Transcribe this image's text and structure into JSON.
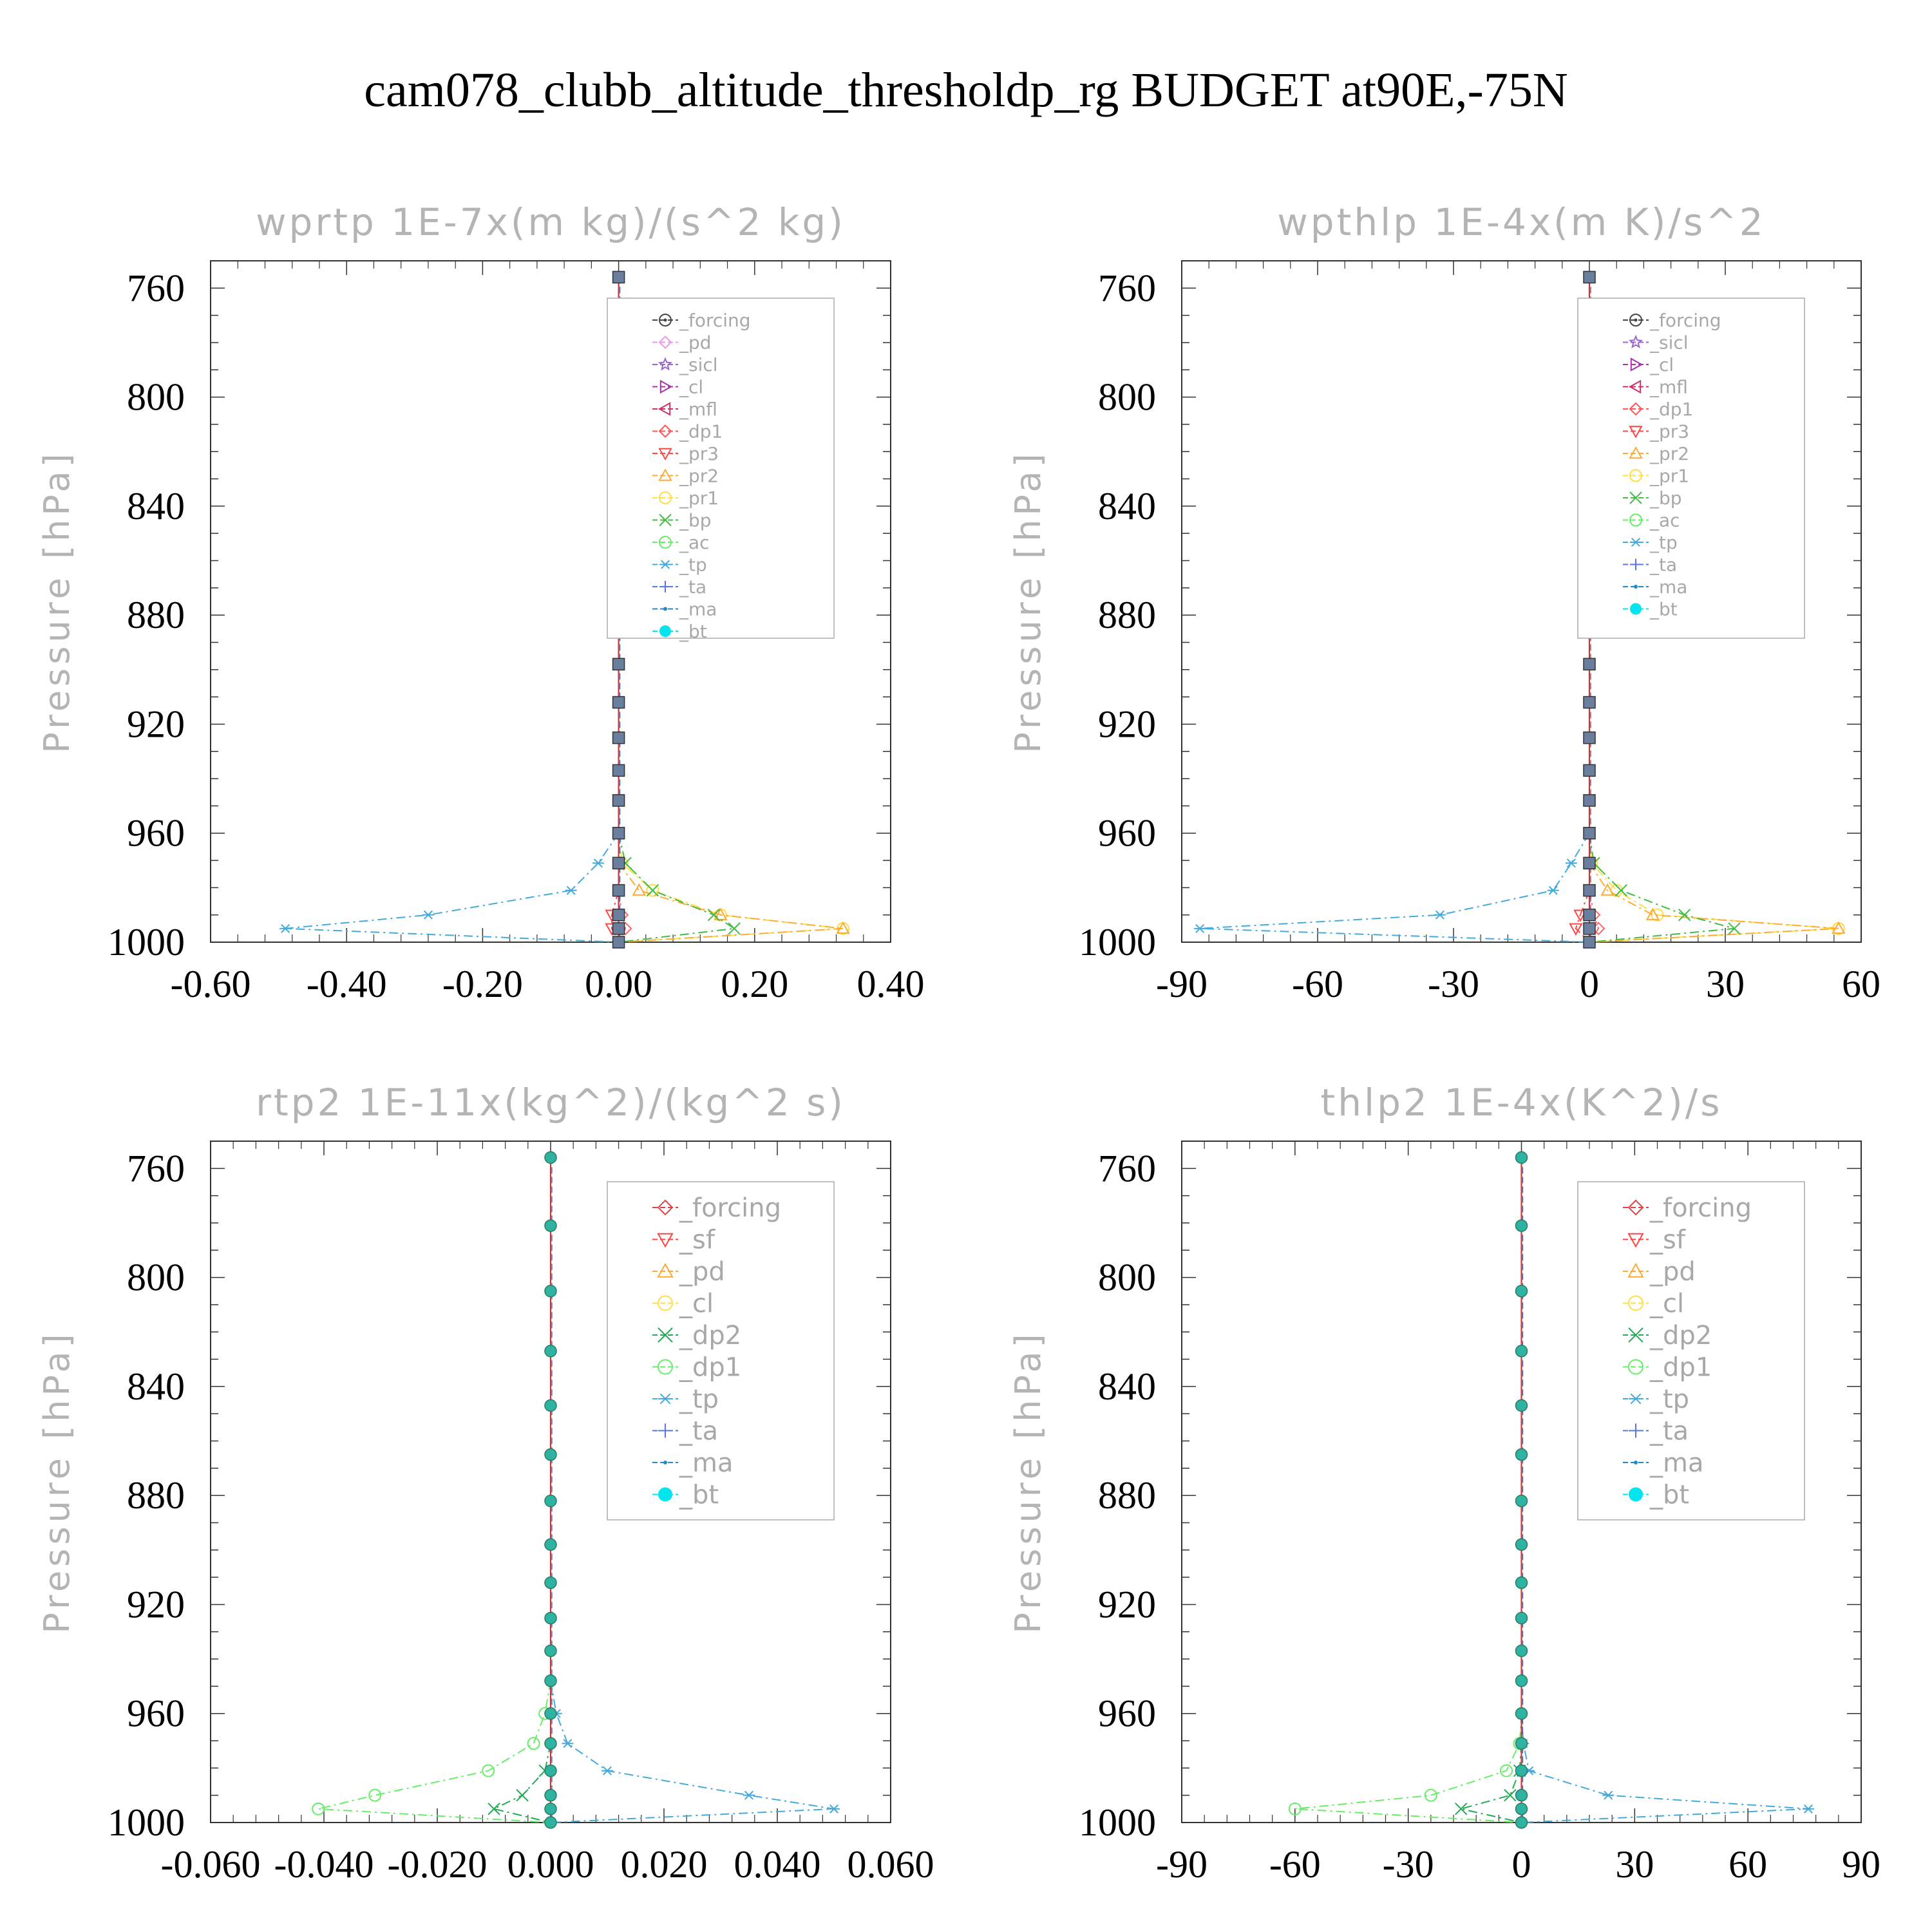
{
  "figure_title": "cam078_clubb_altitude_thresholdp_rg  BUDGET at90E,-75N",
  "chart_data": [
    {
      "type": "line",
      "title": "wprtp  1E-7x(m kg)/(s^2 kg)",
      "ylabel": "Pressure [hPa]",
      "xlabel": "",
      "xlim": [
        -0.6,
        0.4
      ],
      "ylim": [
        1000,
        750
      ],
      "xticks": [
        "-0.60",
        "-0.40",
        "-0.20",
        "0.00",
        "0.20",
        "0.40"
      ],
      "yticks": [
        "760",
        "800",
        "840",
        "880",
        "920",
        "960",
        "1000"
      ],
      "legend": [
        "_forcing",
        "_pd",
        "_sicl",
        "_cl",
        "_mfl",
        "_dp1",
        "_pr3",
        "_pr2",
        "_pr1",
        "_bp",
        "_ac",
        "_tp",
        "_ta",
        "_ma",
        "_bt"
      ],
      "pressure": [
        756,
        781,
        805,
        827,
        847,
        865,
        882,
        898,
        912,
        925,
        937,
        948,
        960,
        971,
        981,
        990,
        995,
        1000
      ],
      "series": [
        {
          "name": "_tp",
          "color": "#44aadd",
          "values": {
            "971": -0.03,
            "981": -0.07,
            "990": -0.28,
            "995": -0.49,
            "1000": 0.0
          }
        },
        {
          "name": "_pr1",
          "color": "#ffdd44",
          "values": {
            "971": 0.005,
            "981": 0.05,
            "990": 0.15,
            "995": 0.33,
            "1000": 0.0
          }
        },
        {
          "name": "_pr2",
          "color": "#ffaa33",
          "values": {
            "981": 0.03,
            "990": 0.15,
            "995": 0.33,
            "1000": 0.0
          }
        },
        {
          "name": "_bp",
          "color": "#44bb44",
          "values": {
            "971": 0.01,
            "981": 0.05,
            "990": 0.14,
            "995": 0.17,
            "1000": 0.0
          }
        },
        {
          "name": "_pr3",
          "color": "#ff4444",
          "values": {
            "990": -0.01,
            "995": -0.01,
            "1000": 0.0
          }
        },
        {
          "name": "_dp1",
          "color": "#ff6666",
          "values": {
            "990": 0.005,
            "995": 0.01,
            "1000": 0.0
          }
        }
      ]
    },
    {
      "type": "line",
      "title": "wpthlp  1E-4x(m K)/s^2",
      "ylabel": "Pressure [hPa]",
      "xlabel": "",
      "xlim": [
        -90,
        60
      ],
      "ylim": [
        1000,
        750
      ],
      "xticks": [
        "-90",
        "-60",
        "-30",
        "0",
        "30",
        "60"
      ],
      "yticks": [
        "760",
        "800",
        "840",
        "880",
        "920",
        "960",
        "1000"
      ],
      "legend": [
        "_forcing",
        "_sicl",
        "_cl",
        "_mfl",
        "_dp1",
        "_pr3",
        "_pr2",
        "_pr1",
        "_bp",
        "_ac",
        "_tp",
        "_ta",
        "_ma",
        "_bt"
      ],
      "pressure": [
        756,
        781,
        805,
        827,
        847,
        865,
        882,
        898,
        912,
        925,
        937,
        948,
        960,
        971,
        981,
        990,
        995,
        1000
      ],
      "series": [
        {
          "name": "_tp",
          "color": "#44aadd",
          "values": {
            "971": -4,
            "981": -8,
            "990": -33,
            "995": -86,
            "1000": 0
          }
        },
        {
          "name": "_pr1",
          "color": "#ffdd44",
          "values": {
            "971": 0.5,
            "981": 6,
            "990": 15,
            "995": 55,
            "1000": 0
          }
        },
        {
          "name": "_pr2",
          "color": "#ffaa33",
          "values": {
            "981": 4,
            "990": 14,
            "995": 55,
            "1000": 0
          }
        },
        {
          "name": "_bp",
          "color": "#44bb44",
          "values": {
            "971": 1,
            "981": 7,
            "990": 21,
            "995": 32,
            "1000": 0
          }
        },
        {
          "name": "_pr3",
          "color": "#ff4444",
          "values": {
            "990": -2,
            "995": -3,
            "1000": 0
          }
        },
        {
          "name": "_dp1",
          "color": "#ff6666",
          "values": {
            "990": 1,
            "995": 2,
            "1000": 0
          }
        }
      ]
    },
    {
      "type": "line",
      "title": "rtp2  1E-11x(kg^2)/(kg^2 s)",
      "ylabel": "Pressure [hPa]",
      "xlabel": "",
      "xlim": [
        -0.06,
        0.06
      ],
      "ylim": [
        1000,
        750
      ],
      "xticks": [
        "-0.060",
        "-0.040",
        "-0.020",
        "0.000",
        "0.020",
        "0.040",
        "0.060"
      ],
      "yticks": [
        "760",
        "800",
        "840",
        "880",
        "920",
        "960",
        "1000"
      ],
      "legend": [
        "_forcing",
        "_sf",
        "_pd",
        "_cl",
        "_dp2",
        "_dp1",
        "_tp",
        "_ta",
        "_ma",
        "_bt"
      ],
      "pressure": [
        756,
        781,
        805,
        827,
        847,
        865,
        882,
        898,
        912,
        925,
        937,
        948,
        960,
        971,
        981,
        990,
        995,
        1000
      ],
      "series": [
        {
          "name": "_tp",
          "color": "#44aadd",
          "values": {
            "960": 0.001,
            "971": 0.003,
            "981": 0.01,
            "990": 0.035,
            "995": 0.05,
            "1000": 0.0
          }
        },
        {
          "name": "_dp1",
          "color": "#66ee66",
          "values": {
            "960": -0.001,
            "971": -0.003,
            "981": -0.011,
            "990": -0.031,
            "995": -0.041,
            "1000": 0.0
          }
        },
        {
          "name": "_dp2",
          "color": "#22aa55",
          "values": {
            "981": -0.001,
            "990": -0.005,
            "995": -0.01,
            "1000": 0.0
          }
        }
      ]
    },
    {
      "type": "line",
      "title": "thlp2  1E-4x(K^2)/s",
      "ylabel": "Pressure [hPa]",
      "xlabel": "",
      "xlim": [
        -90,
        90
      ],
      "ylim": [
        1000,
        750
      ],
      "xticks": [
        "-90",
        "-60",
        "-30",
        "0",
        "30",
        "60",
        "90"
      ],
      "yticks": [
        "760",
        "800",
        "840",
        "880",
        "920",
        "960",
        "1000"
      ],
      "legend": [
        "_forcing",
        "_sf",
        "_pd",
        "_cl",
        "_dp2",
        "_dp1",
        "_tp",
        "_ta",
        "_ma",
        "_bt"
      ],
      "pressure": [
        756,
        781,
        805,
        827,
        847,
        865,
        882,
        898,
        912,
        925,
        937,
        948,
        960,
        971,
        981,
        990,
        995,
        1000
      ],
      "series": [
        {
          "name": "_tp",
          "color": "#44aadd",
          "values": {
            "971": 0.5,
            "981": 2,
            "990": 23,
            "995": 76,
            "1000": 0
          }
        },
        {
          "name": "_dp1",
          "color": "#66ee66",
          "values": {
            "971": -0.5,
            "981": -4,
            "990": -24,
            "995": -60,
            "1000": 0
          }
        },
        {
          "name": "_dp2",
          "color": "#22aa55",
          "values": {
            "981": -0.5,
            "990": -3,
            "995": -16,
            "1000": 0
          }
        }
      ]
    }
  ],
  "colors": {
    "frame": "#333333",
    "axis_label": "#b4b4b4",
    "legend_text": "#a8a8a8",
    "bt_marker": "#00e5ee",
    "forcing_line": "#cc3333"
  }
}
